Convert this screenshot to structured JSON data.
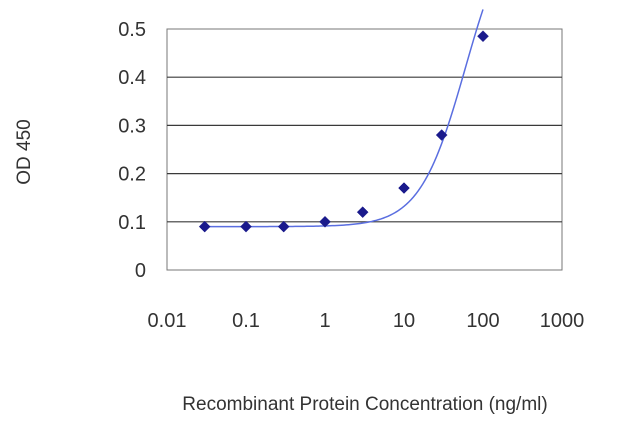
{
  "chart_data": {
    "type": "scatter",
    "title": "",
    "xlabel": "Recombinant Protein Concentration (ng/ml)",
    "ylabel": "OD 450",
    "x_scale": "log",
    "xlim": [
      0.01,
      1000
    ],
    "ylim": [
      0,
      0.5
    ],
    "x_ticks": [
      "0.01",
      "0.1",
      "1",
      "10",
      "100",
      "1000"
    ],
    "y_ticks": [
      "0",
      "0.1",
      "0.2",
      "0.3",
      "0.4",
      "0.5"
    ],
    "grid": "horizontal",
    "legend": "none",
    "series": [
      {
        "x": [
          0.03,
          0.1,
          0.3,
          1,
          3,
          10,
          30,
          100
        ],
        "y": [
          0.09,
          0.09,
          0.09,
          0.1,
          0.12,
          0.17,
          0.28,
          0.485
        ],
        "marker": "diamond",
        "color": "#1a1a8c",
        "fit_line": "sigmoid",
        "fit_color": "#5a6ee0"
      }
    ]
  }
}
